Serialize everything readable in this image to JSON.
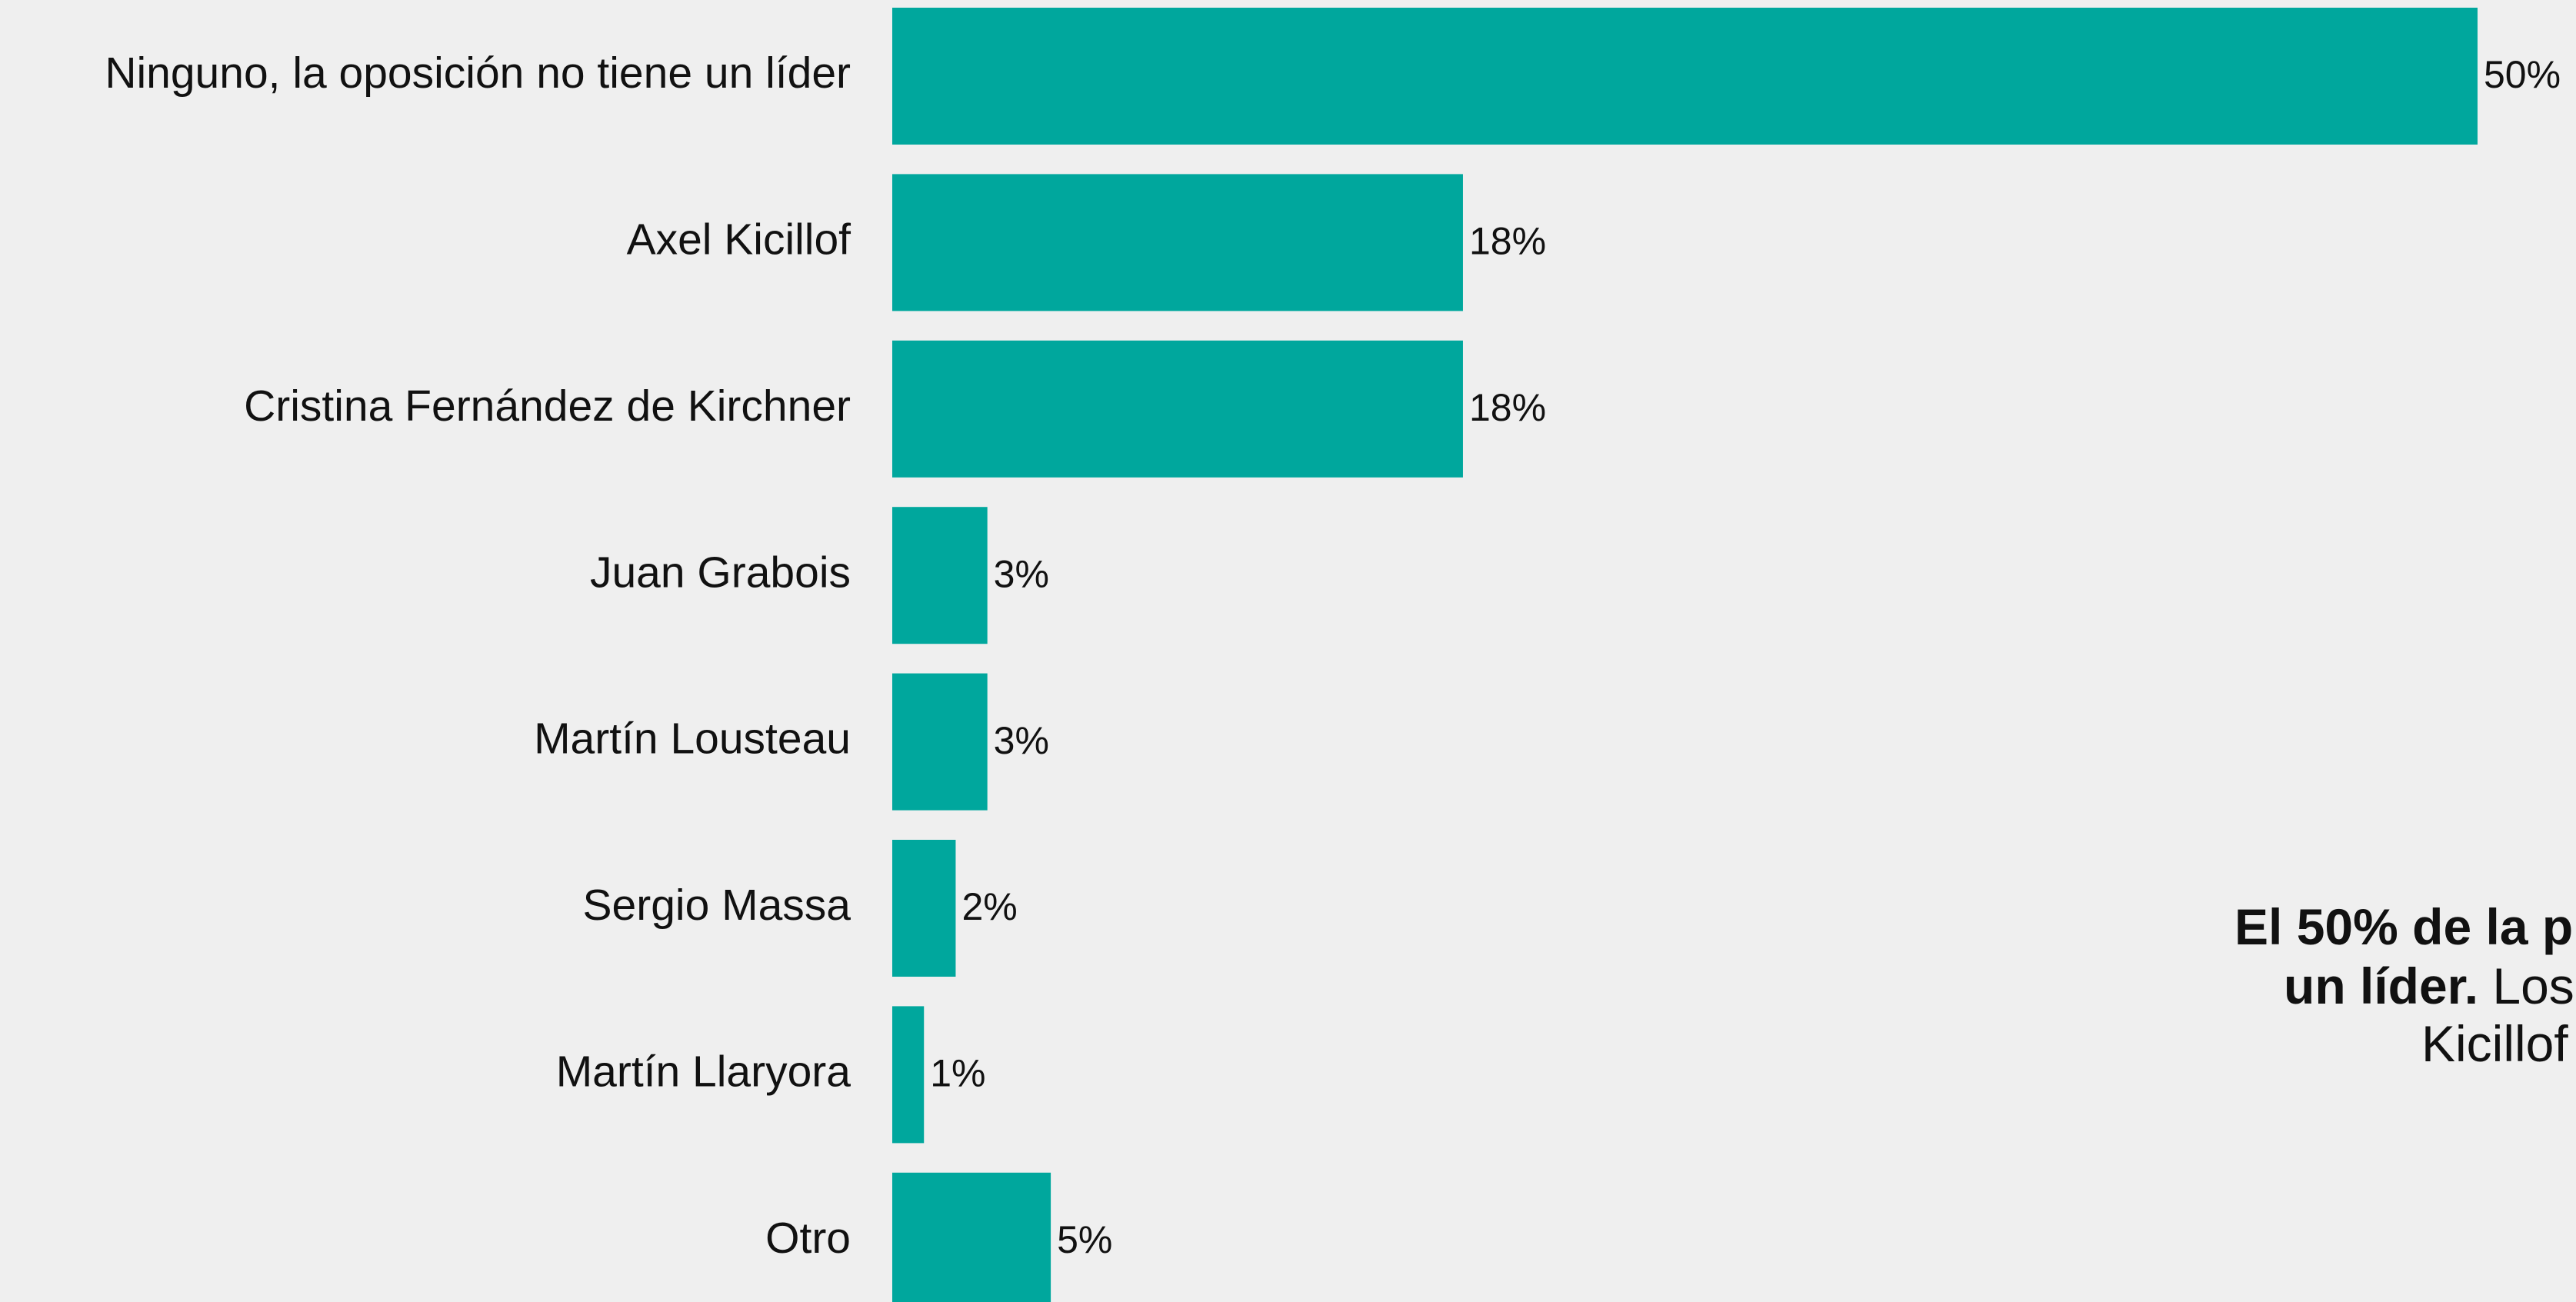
{
  "chart_data": {
    "type": "bar",
    "orientation": "horizontal",
    "categories": [
      "Ninguno, la oposición no tiene un líder",
      "Axel Kicillof",
      "Cristina Fernández de Kirchner",
      "Juan Grabois",
      "Martín Lousteau",
      "Sergio Massa",
      "Martín Llaryora",
      "Otro"
    ],
    "values": [
      50,
      18,
      18,
      3,
      3,
      2,
      1,
      5
    ],
    "value_labels": [
      "50%",
      "18%",
      "18%",
      "3%",
      "3%",
      "2%",
      "1%",
      "5%"
    ],
    "color": "#00a79d",
    "xlim": [
      0,
      50
    ],
    "annotation": [
      [
        {
          "text": "El 50% de la p",
          "bold": true
        }
      ],
      [
        {
          "text": "un líder.",
          "bold": true
        },
        {
          "text": " Los",
          "bold": false
        }
      ],
      [
        {
          "text": "Kicillof",
          "bold": false
        }
      ]
    ]
  }
}
